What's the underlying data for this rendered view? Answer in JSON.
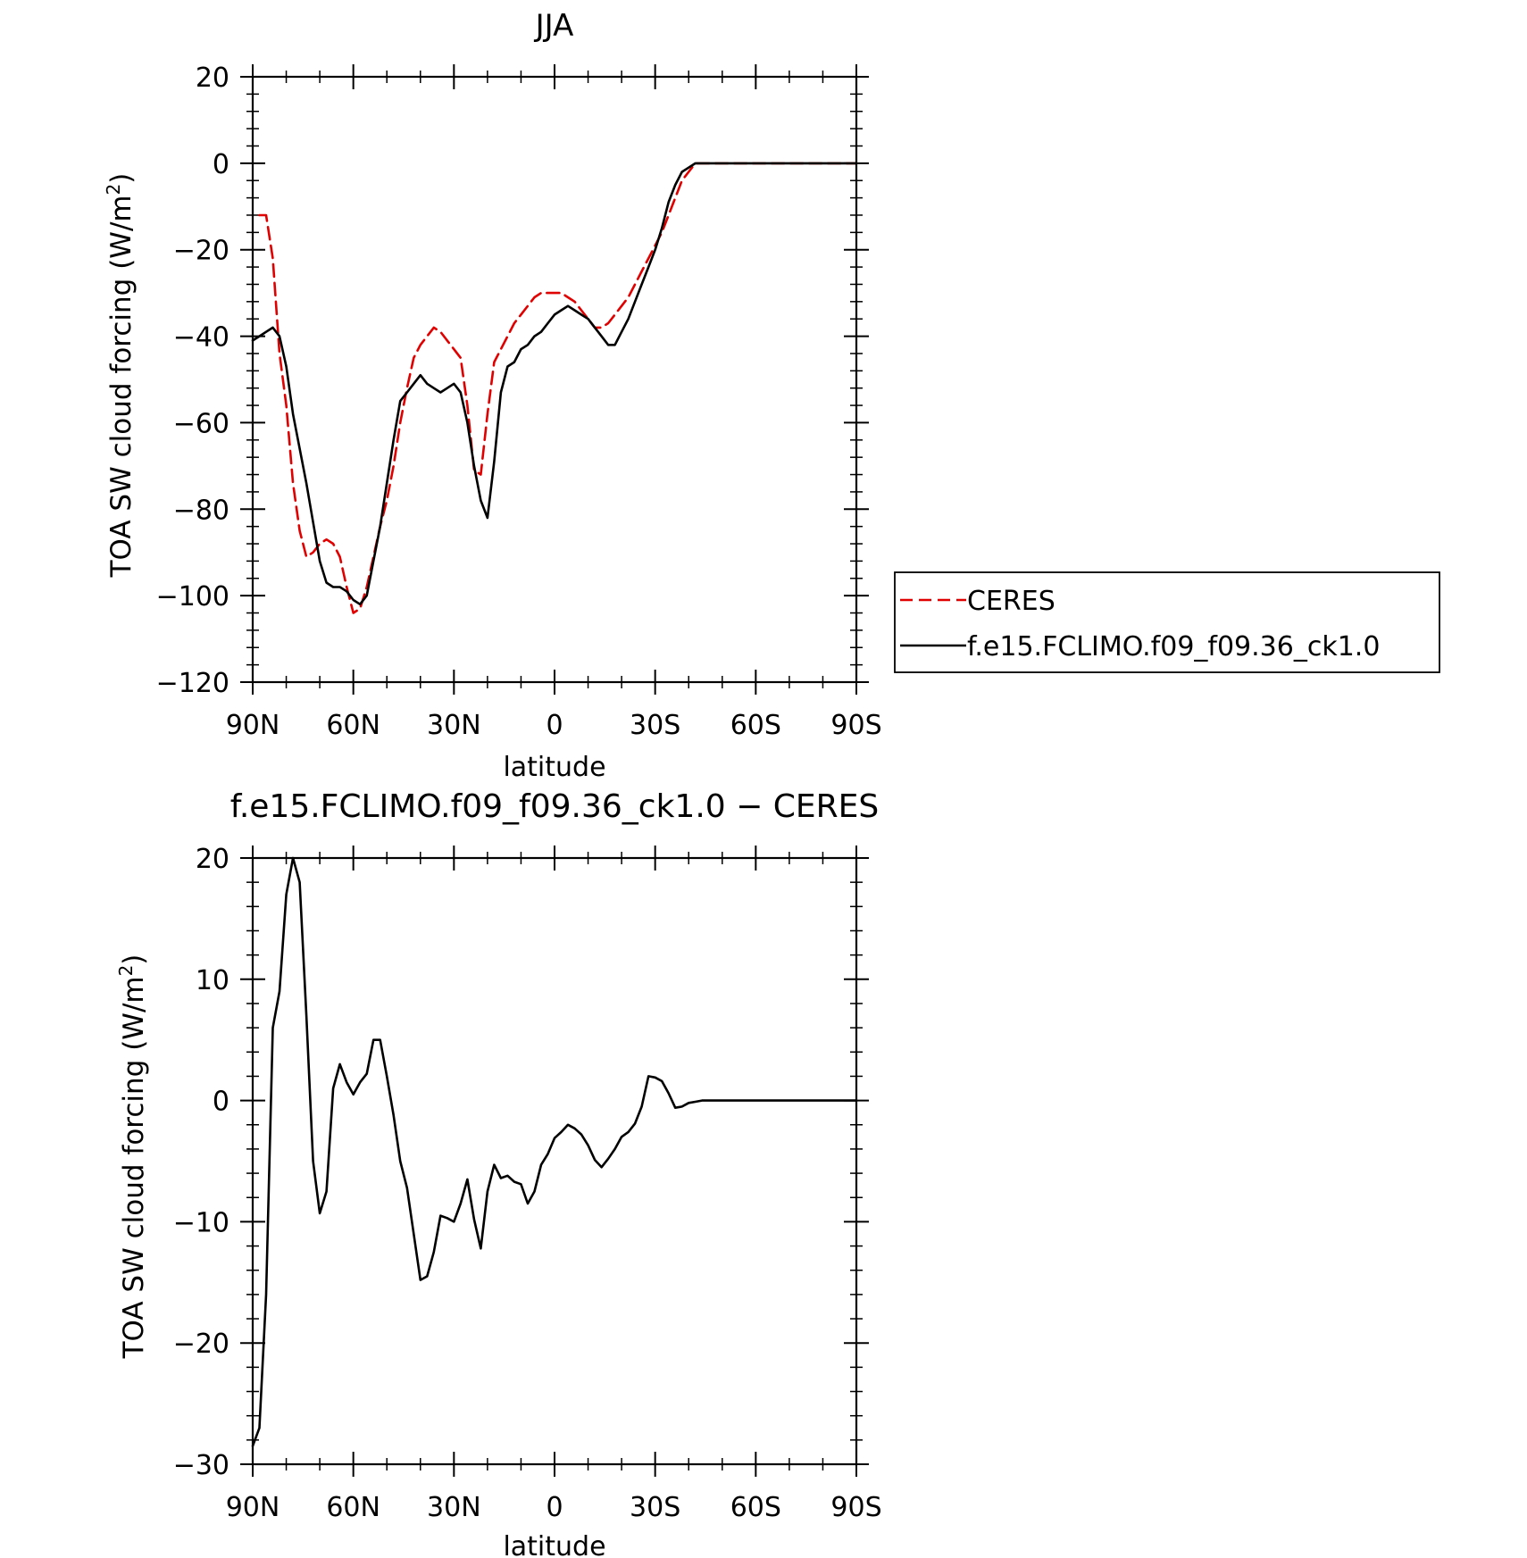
{
  "chart_data": [
    {
      "type": "line",
      "title": "JJA",
      "xlabel": "latitude",
      "ylabel": "TOA SW cloud forcing (W/m²)",
      "ylabel_base": "TOA SW cloud forcing (W/m",
      "ylabel_sup": "2",
      "ylabel_end": ")",
      "xlim": [
        90,
        -90
      ],
      "ylim": [
        -120,
        20
      ],
      "y_ticks": [
        20,
        0,
        -20,
        -40,
        -60,
        -80,
        -100,
        -120
      ],
      "y_ticklabels": [
        "20",
        "0",
        "−20",
        "−40",
        "−60",
        "−80",
        "−100",
        "−120"
      ],
      "x_ticks": [
        90,
        60,
        30,
        0,
        -30,
        -60,
        -90
      ],
      "x_ticklabels": [
        "90N",
        "60N",
        "30N",
        "0",
        "30S",
        "60S",
        "90S"
      ],
      "grid": false,
      "legend_placement": "right-middle",
      "series": [
        {
          "name": "CERES",
          "color": "#e00000",
          "dash": "dashed",
          "x": [
            88,
            86,
            84,
            82,
            80,
            78,
            76,
            74,
            72,
            70,
            68,
            66,
            64,
            62,
            60,
            58,
            56,
            54,
            52,
            50,
            48,
            46,
            44,
            42,
            40,
            38,
            36,
            34,
            32,
            30,
            28,
            26,
            24,
            22,
            20,
            18,
            16,
            14,
            12,
            10,
            8,
            6,
            4,
            2,
            0,
            -2,
            -4,
            -6,
            -8,
            -10,
            -12,
            -14,
            -16,
            -18,
            -20,
            -22,
            -24,
            -26,
            -28,
            -30,
            -32,
            -34,
            -36,
            -38,
            -40,
            -42,
            -44,
            -46,
            -48,
            -50,
            -52,
            -54,
            -56,
            -58,
            -60,
            -62,
            -64,
            -66,
            -68,
            -70,
            -72,
            -74,
            -76,
            -78,
            -80,
            -82,
            -84,
            -86,
            -88,
            -90
          ],
          "y": [
            -12,
            -12,
            -22,
            -44,
            -56,
            -74,
            -85,
            -91,
            -90,
            -88,
            -87,
            -88,
            -91,
            -98,
            -104,
            -103,
            -98,
            -91,
            -84,
            -78,
            -70,
            -60,
            -52,
            -45,
            -42,
            -40,
            -38,
            -39,
            -41,
            -43,
            -45,
            -56,
            -71,
            -72,
            -58,
            -46,
            -43,
            -40,
            -37,
            -35,
            -33,
            -31,
            -30,
            -30,
            -30,
            -30,
            -31,
            -32,
            -34,
            -36,
            -38,
            -38,
            -37,
            -35,
            -33,
            -31,
            -28,
            -25,
            -22,
            -19,
            -16,
            -12,
            -8,
            -4,
            -2,
            0,
            0,
            0,
            0,
            0,
            0,
            0,
            0,
            0,
            0,
            0,
            0,
            0,
            0,
            0,
            0,
            0,
            0,
            0,
            0,
            0,
            0,
            0,
            0,
            0
          ]
        },
        {
          "name": "f.e15.FCLIMO.f09_f09.36_ck1.0",
          "color": "#000000",
          "dash": "solid",
          "x": [
            90,
            88,
            86,
            84,
            82,
            80,
            78,
            76,
            74,
            72,
            70,
            68,
            66,
            64,
            62,
            60,
            58,
            56,
            54,
            52,
            50,
            48,
            46,
            44,
            42,
            40,
            38,
            36,
            34,
            32,
            30,
            28,
            26,
            24,
            22,
            20,
            18,
            16,
            14,
            12,
            10,
            8,
            6,
            4,
            2,
            0,
            -2,
            -4,
            -6,
            -8,
            -10,
            -12,
            -14,
            -16,
            -18,
            -20,
            -22,
            -24,
            -26,
            -28,
            -30,
            -32,
            -34,
            -36,
            -38,
            -40,
            -42,
            -44,
            -46,
            -48,
            -50,
            -52,
            -54,
            -56,
            -58,
            -60,
            -62,
            -64,
            -66,
            -68,
            -70,
            -72,
            -74,
            -76,
            -78,
            -80,
            -82,
            -84,
            -86,
            -88,
            -90
          ],
          "y": [
            -41,
            -40,
            -39,
            -38,
            -40,
            -47,
            -58,
            -66,
            -74,
            -83,
            -92,
            -97,
            -98,
            -98,
            -99,
            -101,
            -102,
            -100,
            -92,
            -84,
            -74,
            -64,
            -55,
            -53,
            -51,
            -49,
            -51,
            -52,
            -53,
            -52,
            -51,
            -53,
            -60,
            -70,
            -78,
            -82,
            -69,
            -53,
            -47,
            -46,
            -43,
            -42,
            -40,
            -39,
            -37,
            -35,
            -34,
            -33,
            -34,
            -35,
            -36,
            -38,
            -40,
            -42,
            -42,
            -39,
            -36,
            -32,
            -28,
            -24,
            -20,
            -15,
            -9,
            -5,
            -2,
            -1,
            0,
            0,
            0,
            0,
            0,
            0,
            0,
            0,
            0,
            0,
            0,
            0,
            0,
            0,
            0,
            0,
            0,
            0,
            0,
            0,
            0,
            0,
            0,
            0,
            0
          ]
        }
      ]
    },
    {
      "type": "line",
      "title": "f.e15.FCLIMO.f09_f09.36_ck1.0 − CERES",
      "xlabel": "latitude",
      "ylabel": "TOA SW cloud forcing (W/m²)",
      "ylabel_base": "TOA SW cloud forcing (W/m",
      "ylabel_sup": "2",
      "ylabel_end": ")",
      "xlim": [
        90,
        -90
      ],
      "ylim": [
        -30,
        20
      ],
      "y_ticks": [
        20,
        10,
        0,
        -10,
        -20,
        -30
      ],
      "y_ticklabels": [
        "20",
        "10",
        "0",
        "−10",
        "−20",
        "−30"
      ],
      "x_ticks": [
        90,
        60,
        30,
        0,
        -30,
        -60,
        -90
      ],
      "x_ticklabels": [
        "90N",
        "60N",
        "30N",
        "0",
        "30S",
        "60S",
        "90S"
      ],
      "grid": false,
      "series": [
        {
          "color": "#000000",
          "dash": "solid",
          "x": [
            90,
            88,
            86,
            84,
            82,
            80,
            78,
            76,
            74,
            72,
            70,
            68,
            66,
            64,
            62,
            60,
            58,
            56,
            54,
            52,
            50,
            48,
            46,
            44,
            42,
            40,
            38,
            36,
            34,
            32,
            30,
            28,
            26,
            24,
            22,
            20,
            18,
            16,
            14,
            12,
            10,
            8,
            6,
            4,
            2,
            0,
            -2,
            -4,
            -6,
            -8,
            -10,
            -12,
            -14,
            -16,
            -18,
            -20,
            -22,
            -24,
            -26,
            -28,
            -30,
            -32,
            -34,
            -36,
            -38,
            -40,
            -42,
            -44,
            -46,
            -48,
            -50,
            -52,
            -54,
            -56,
            -58,
            -60,
            -62,
            -64,
            -66,
            -68,
            -70,
            -72,
            -74,
            -76,
            -78,
            -80,
            -82,
            -84,
            -86,
            -88,
            -90
          ],
          "y": [
            -28.5,
            -27,
            -16,
            6,
            9,
            17,
            20,
            18,
            7,
            -5,
            -9.3,
            -7.5,
            1,
            3,
            1.5,
            0.5,
            1.5,
            2.2,
            5,
            5,
            2,
            -1.2,
            -5,
            -7.2,
            -11,
            -14.8,
            -14.5,
            -12.5,
            -9.5,
            -9.7,
            -10,
            -8.5,
            -6.5,
            -9.8,
            -12.2,
            -7.5,
            -5.3,
            -6.4,
            -6.2,
            -6.7,
            -6.9,
            -8.5,
            -7.5,
            -5.3,
            -4.4,
            -3.1,
            -2.6,
            -2,
            -2.3,
            -2.8,
            -3.7,
            -4.9,
            -5.5,
            -4.8,
            -4,
            -3,
            -2.6,
            -1.9,
            -0.5,
            2,
            1.9,
            1.6,
            0.6,
            -0.6,
            -0.5,
            -0.2,
            -0.1,
            0,
            0,
            0,
            0,
            0,
            0,
            0,
            0,
            0,
            0,
            0,
            0,
            0,
            0,
            0,
            0,
            0,
            0,
            0,
            0,
            0,
            0,
            0,
            0
          ]
        }
      ]
    }
  ]
}
